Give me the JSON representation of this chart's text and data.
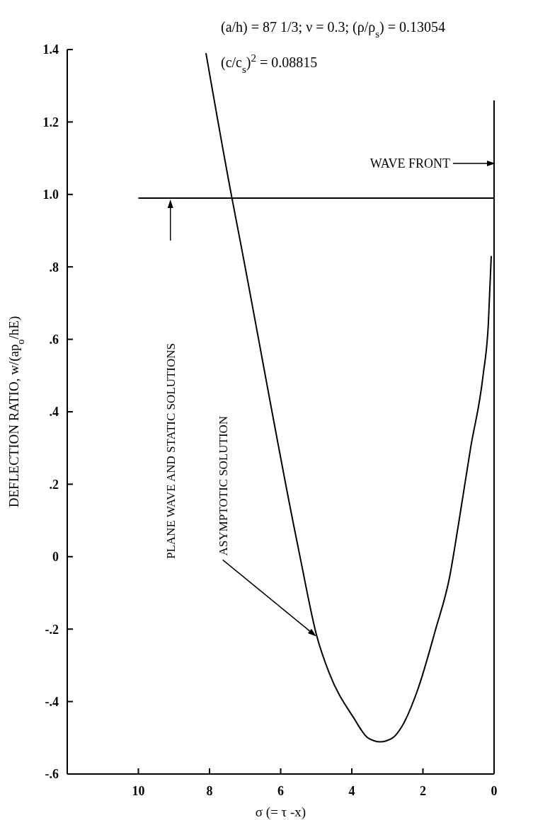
{
  "chart_data": {
    "type": "line",
    "xlabel": "σ (= τ  -x)",
    "ylabel": "DEFLECTION RATIO,  w/(ap$_{o}$/hE)",
    "xlim": [
      12,
      0
    ],
    "xticks": [
      10,
      8,
      6,
      4,
      2,
      0
    ],
    "ylim": [
      -0.6,
      1.4
    ],
    "yticks": [
      {
        "value": -0.6,
        "label": "-.6"
      },
      {
        "value": -0.4,
        "label": "-.4"
      },
      {
        "value": -0.2,
        "label": "-.2"
      },
      0,
      {
        "value": 0.2,
        "label": ".2"
      },
      {
        "value": 0.4,
        "label": ".4"
      },
      {
        "value": 0.6,
        "label": ".6"
      },
      {
        "value": 0.8,
        "label": ".8"
      },
      {
        "value": 1.0,
        "label": "1.0"
      },
      {
        "value": 1.2,
        "label": "1.2"
      },
      {
        "value": 1.4,
        "label": "1.4"
      }
    ],
    "grid": false,
    "marker": "none",
    "line_style": "solid",
    "series": [
      {
        "color": "#000000",
        "x": [
          8.1,
          7.37,
          7.17,
          5.64,
          5.44,
          4.99,
          4.64,
          3.94,
          3.55,
          3.2,
          2.85,
          2.6,
          2.15,
          1.65,
          1.25,
          1.0,
          0.66,
          0.31,
          0.16,
          0.08
        ],
        "values": [
          1.39,
          0.99,
          0.888,
          0.09,
          -0.008,
          -0.217,
          -0.32,
          -0.446,
          -0.5,
          -0.511,
          -0.5,
          -0.47,
          -0.368,
          -0.203,
          -0.056,
          0.09,
          0.3,
          0.5,
          0.645,
          0.83
        ]
      },
      {
        "color": "#000000",
        "x": [
          10,
          0
        ],
        "values": [
          0.99,
          0.99
        ]
      }
    ],
    "ref_lines": [
      {
        "axis": "x",
        "value": 0,
        "label": "WAVE FRONT",
        "color": "#000000"
      }
    ],
    "annotations": [
      "(a/h) = 87 1/3;     ν = 0.3;     (ρ/ρ$_{s}$) = 0.13054",
      "(c/c$_{s}$)$^{2}$ = 0.08815",
      "PLANE WAVE AND STATIC SOLUTIONS",
      "ASYMPTOTIC SOLUTION"
    ]
  }
}
